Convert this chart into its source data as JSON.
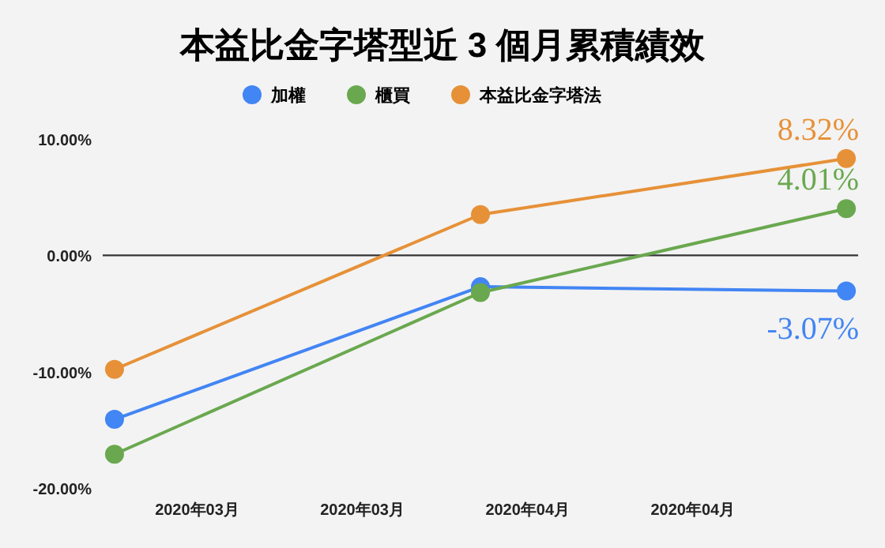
{
  "chart_data": {
    "type": "line",
    "title": "本益比金字塔型近 3 個月累積績效",
    "x": [
      "2020-03-01",
      "2020-04-01",
      "2020-05-02"
    ],
    "xlim": [
      "2020-02-29",
      "2020-05-03"
    ],
    "xticks": [
      {
        "value": "2020-03-08",
        "label": "2020年03月"
      },
      {
        "value": "2020-03-22",
        "label": "2020年03月"
      },
      {
        "value": "2020-04-05",
        "label": "2020年04月"
      },
      {
        "value": "2020-04-19",
        "label": "2020年04月"
      }
    ],
    "ylim": [
      -20,
      10
    ],
    "yticks": [
      {
        "value": -20,
        "label": "-20.00%"
      },
      {
        "value": -10,
        "label": "-10.00%"
      },
      {
        "value": 0,
        "label": "0.00%"
      },
      {
        "value": 10,
        "label": "10.00%"
      }
    ],
    "series": [
      {
        "name": "加權",
        "color": "#4285f4",
        "values": [
          -14.1,
          -2.7,
          -3.07
        ],
        "value_labels": [
          null,
          null,
          "-3.07%"
        ]
      },
      {
        "name": "櫃買",
        "color": "#6aa84f",
        "values": [
          -17.1,
          -3.2,
          4.01
        ],
        "value_labels": [
          null,
          null,
          "4.01%"
        ]
      },
      {
        "name": "本益比金字塔法",
        "color": "#e69138",
        "values": [
          -9.8,
          3.5,
          8.32
        ],
        "value_labels": [
          null,
          null,
          "8.32%"
        ]
      }
    ],
    "ref_lines": [
      {
        "axis": "y",
        "value": 0,
        "color": "#333333"
      }
    ],
    "marker": "circle",
    "line_style": "solid",
    "legend": "top",
    "grid": false
  }
}
